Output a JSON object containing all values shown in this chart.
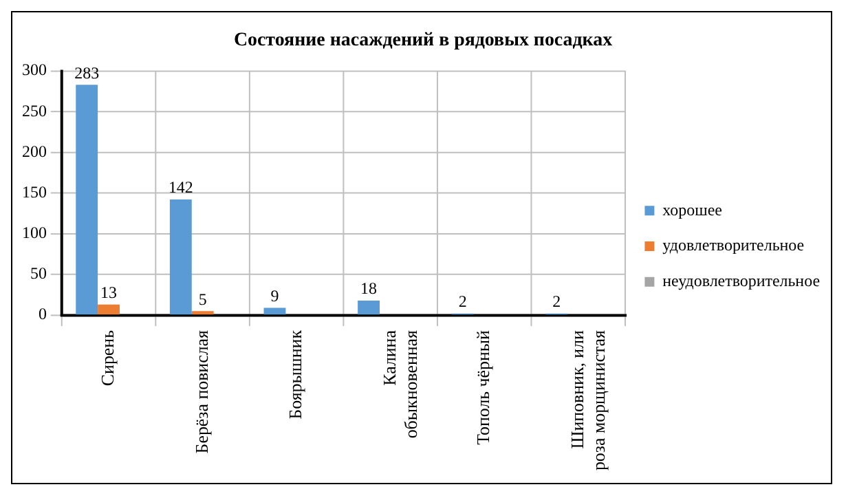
{
  "chart_data": {
    "type": "bar",
    "title": "Состояние насаждений в рядовых посадках",
    "categories": [
      "Сирень",
      "Берёза повислая",
      "Боярышник",
      "Калина обыкновенная",
      "Тополь чёрный",
      "Шиповник, или роза морщинистая"
    ],
    "series": [
      {
        "name": "хорошее",
        "color": "#5b9bd5",
        "values": [
          283,
          142,
          9,
          18,
          2,
          2
        ],
        "value_labels": [
          "283",
          "142",
          "9",
          "18",
          "2",
          "2"
        ]
      },
      {
        "name": "удовлетворительное",
        "color": "#ed7d31",
        "values": [
          13,
          5,
          0,
          0,
          0,
          0
        ],
        "value_labels": [
          "13",
          "5",
          null,
          null,
          null,
          null
        ]
      },
      {
        "name": "неудовлетворительное",
        "color": "#a5a5a5",
        "values": [
          0,
          0,
          0,
          0,
          0,
          0
        ],
        "value_labels": [
          null,
          null,
          null,
          null,
          null,
          null
        ]
      }
    ],
    "ylim": [
      0,
      300
    ],
    "yticks": [
      0,
      50,
      100,
      150,
      200,
      250,
      300
    ],
    "grid": true,
    "legend": "right"
  }
}
